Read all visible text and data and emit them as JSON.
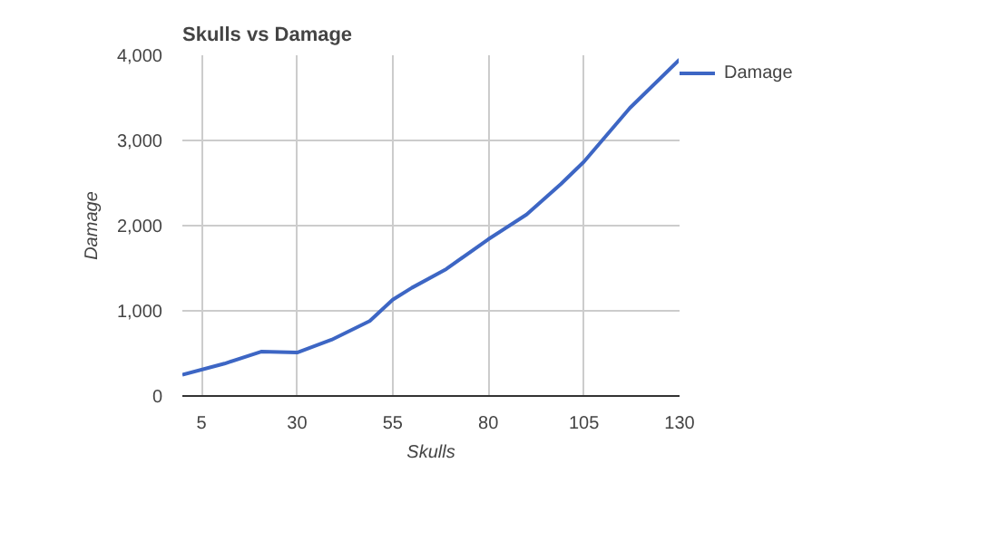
{
  "chart_data": {
    "type": "line",
    "title": "Skulls vs Damage",
    "xlabel": "Skulls",
    "ylabel": "Damage",
    "x": [
      0,
      11,
      20.6,
      30,
      39,
      49,
      55,
      60,
      69,
      80,
      90,
      99,
      105,
      117,
      130
    ],
    "series": [
      {
        "name": "Damage",
        "color": "#3d66c4",
        "values": [
          250,
          380,
          520,
          510,
          660,
          880,
          1130,
          1270,
          1490,
          1840,
          2130,
          2490,
          2750,
          3380,
          3950
        ]
      }
    ],
    "xlim": [
      0,
      130
    ],
    "xticks": [
      5,
      30,
      55,
      80,
      105,
      130
    ],
    "ylim": [
      0,
      4000
    ],
    "yticks": [
      {
        "value": 0,
        "label": "0"
      },
      {
        "value": 1000,
        "label": "1,000"
      },
      {
        "value": 2000,
        "label": "2,000"
      },
      {
        "value": 3000,
        "label": "3,000"
      },
      {
        "value": 4000,
        "label": "4,000"
      }
    ],
    "grid": true,
    "legend": "top right",
    "marker": "none",
    "line_style": "solid"
  }
}
